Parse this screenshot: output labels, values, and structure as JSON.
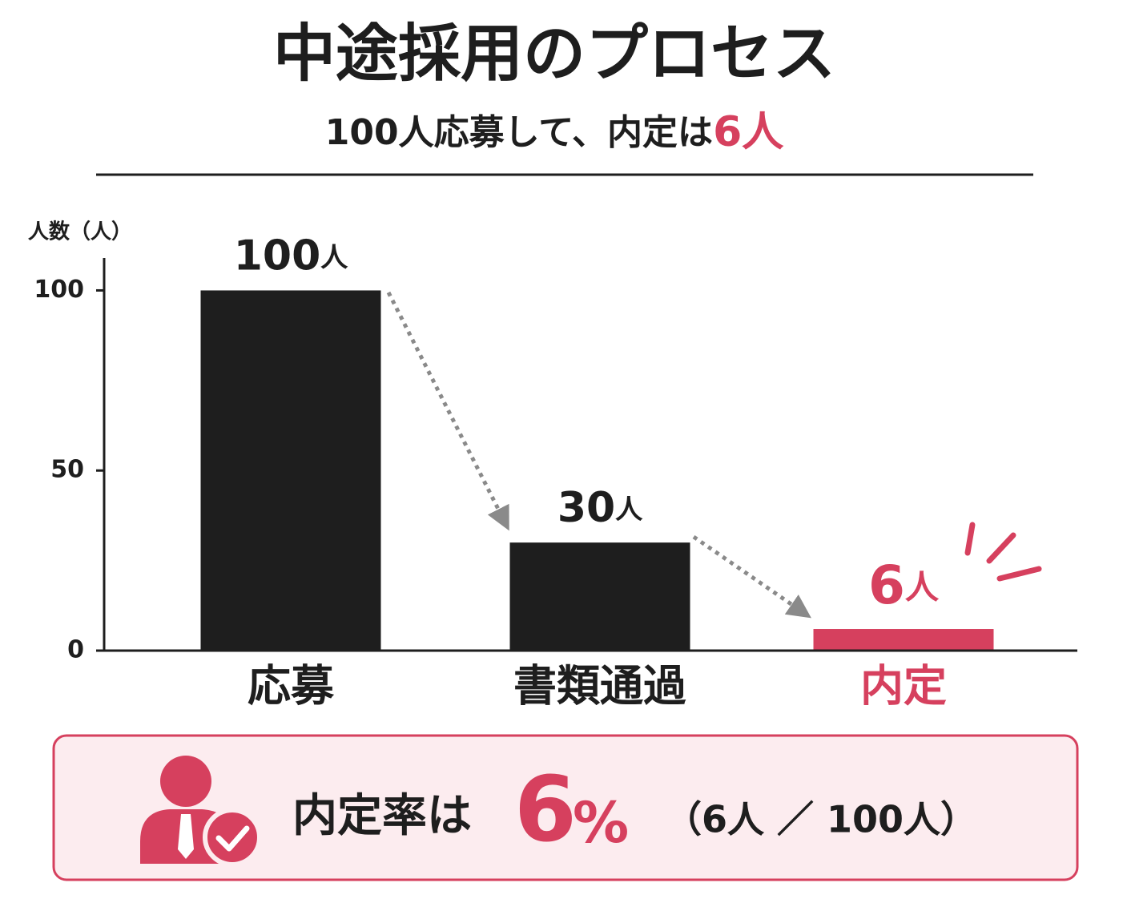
{
  "chart_data": {
    "type": "bar",
    "title": "中途採用のプロセス",
    "subtitle": [
      "100人応募して、内定は",
      "6人"
    ],
    "y_label": "人数（人）",
    "categories": [
      "応募",
      "書類通過",
      "内定"
    ],
    "values": [
      100,
      30,
      6
    ],
    "value_labels": [
      "100人",
      "30人",
      "6人"
    ],
    "colors": [
      "#1e1e1e",
      "#1e1e1e",
      "#d6405e"
    ],
    "ylim": [
      0,
      109
    ],
    "yticks": [
      0,
      50,
      100
    ],
    "callout": {
      "prefix": "内定率は",
      "rate": "6",
      "unit": "%",
      "detail": "（6人 ／ 100人）"
    }
  }
}
